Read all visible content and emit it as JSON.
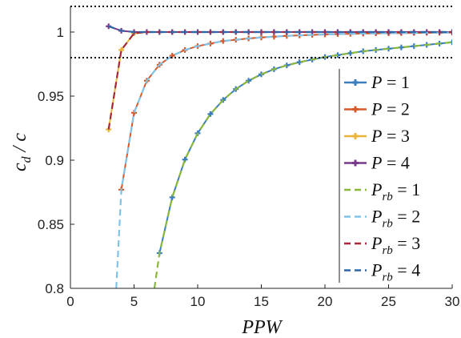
{
  "chart_data": {
    "type": "line",
    "xlabel": "PPW",
    "ylabel": "c_d / c",
    "xlim": [
      0,
      30
    ],
    "ylim": [
      0.8,
      1.02
    ],
    "xticks": [
      "0",
      "5",
      "10",
      "15",
      "20",
      "25",
      "30"
    ],
    "yticks": [
      "0.8",
      "0.85",
      "0.9",
      "0.95",
      "1"
    ],
    "reference_lines": [
      0.98,
      1.02
    ],
    "grid": false,
    "legend_position": "right",
    "series": [
      {
        "name": "P = 1",
        "style": "solid-marker",
        "color": "#3a7ec0",
        "x": [
          7,
          8,
          9,
          10,
          11,
          12,
          13,
          14,
          15,
          16,
          17,
          18,
          19,
          20,
          21,
          22,
          23,
          24,
          25,
          26,
          27,
          28,
          29,
          30
        ],
        "y": [
          0.8275,
          0.871,
          0.9005,
          0.921,
          0.936,
          0.947,
          0.9555,
          0.962,
          0.967,
          0.971,
          0.974,
          0.9765,
          0.9785,
          0.9805,
          0.982,
          0.9835,
          0.985,
          0.986,
          0.987,
          0.988,
          0.989,
          0.99,
          0.991,
          0.992
        ]
      },
      {
        "name": "P = 2",
        "style": "solid-marker",
        "color": "#d65a2a",
        "x": [
          4,
          5,
          6,
          7,
          8,
          9,
          10,
          11,
          12,
          13,
          14,
          15,
          16,
          17,
          18,
          19,
          20,
          21,
          22,
          23,
          24,
          25,
          26,
          27,
          28,
          29,
          30
        ],
        "y": [
          0.877,
          0.937,
          0.962,
          0.9745,
          0.9815,
          0.986,
          0.989,
          0.991,
          0.993,
          0.994,
          0.995,
          0.9958,
          0.9964,
          0.997,
          0.9974,
          0.9978,
          0.9981,
          0.9984,
          0.9986,
          0.9988,
          0.999,
          0.9991,
          0.9992,
          0.9993,
          0.9994,
          0.9995,
          0.9996
        ]
      },
      {
        "name": "P = 3",
        "style": "solid-marker",
        "color": "#e8b43a",
        "x": [
          3,
          4,
          5,
          6,
          7,
          8,
          9,
          10,
          11,
          12,
          13,
          14,
          15,
          16,
          17,
          18,
          19,
          20,
          21,
          22,
          23,
          24,
          25,
          26,
          27,
          28,
          29,
          30
        ],
        "y": [
          0.924,
          0.986,
          0.999,
          1.0,
          1.0,
          1.0,
          1.0,
          1.0,
          1.0,
          1.0,
          1.0,
          1.0,
          1.0,
          1.0,
          1.0,
          1.0,
          1.0,
          1.0,
          1.0,
          1.0,
          1.0,
          1.0,
          1.0,
          1.0,
          1.0,
          1.0,
          1.0,
          1.0
        ]
      },
      {
        "name": "P = 4",
        "style": "solid-marker",
        "color": "#7a3a8c",
        "x": [
          3,
          4,
          5,
          6,
          7,
          8,
          9,
          10,
          11,
          12,
          13,
          14,
          15,
          16,
          17,
          18,
          19,
          20,
          21,
          22,
          23,
          24,
          25,
          26,
          27,
          28,
          29,
          30
        ],
        "y": [
          1.0045,
          1.001,
          1.0,
          1.0,
          1.0,
          1.0,
          1.0,
          1.0,
          1.0,
          1.0,
          1.0,
          1.0,
          1.0,
          1.0,
          1.0,
          1.0,
          1.0,
          1.0,
          1.0,
          1.0,
          1.0,
          1.0,
          1.0,
          1.0,
          1.0,
          1.0,
          1.0,
          1.0
        ]
      },
      {
        "name": "P_rb = 1",
        "style": "dashed",
        "color": "#8ab83a",
        "x": [
          6.6,
          7,
          8,
          9,
          10,
          11,
          12,
          13,
          14,
          15,
          16,
          17,
          18,
          19,
          20,
          21,
          22,
          23,
          24,
          25,
          26,
          27,
          28,
          29,
          30
        ],
        "y": [
          0.8,
          0.8275,
          0.871,
          0.9005,
          0.921,
          0.936,
          0.947,
          0.9555,
          0.962,
          0.967,
          0.971,
          0.974,
          0.9765,
          0.9785,
          0.9805,
          0.982,
          0.9835,
          0.985,
          0.986,
          0.987,
          0.988,
          0.989,
          0.99,
          0.991,
          0.992
        ]
      },
      {
        "name": "P_rb = 2",
        "style": "dashed",
        "color": "#7fc4e8",
        "x": [
          3.6,
          4,
          5,
          6,
          7,
          8,
          9,
          10,
          11,
          12,
          13,
          14,
          15,
          16,
          17,
          18,
          19,
          20,
          21,
          22,
          23,
          24,
          25,
          26,
          27,
          28,
          29,
          30
        ],
        "y": [
          0.8,
          0.877,
          0.937,
          0.962,
          0.9745,
          0.9815,
          0.986,
          0.989,
          0.991,
          0.993,
          0.994,
          0.995,
          0.9958,
          0.9964,
          0.997,
          0.9974,
          0.9978,
          0.9981,
          0.9984,
          0.9986,
          0.9988,
          0.999,
          0.9991,
          0.9992,
          0.9993,
          0.9994,
          0.9995,
          0.9996
        ]
      },
      {
        "name": "P_rb = 3",
        "style": "dashed",
        "color": "#a8283a",
        "x": [
          3,
          4,
          5,
          6,
          7,
          8,
          9,
          10,
          11,
          12,
          13,
          14,
          15,
          16,
          17,
          18,
          19,
          20,
          21,
          22,
          23,
          24,
          25,
          26,
          27,
          28,
          29,
          30
        ],
        "y": [
          0.924,
          0.986,
          0.999,
          1.0,
          1.0,
          1.0,
          1.0,
          1.0,
          1.0,
          1.0,
          1.0,
          1.0,
          1.0,
          1.0,
          1.0,
          1.0,
          1.0,
          1.0,
          1.0,
          1.0,
          1.0,
          1.0,
          1.0,
          1.0,
          1.0,
          1.0,
          1.0,
          1.0
        ]
      },
      {
        "name": "P_rb = 4",
        "style": "dashed",
        "color": "#2a66a8",
        "x": [
          3,
          4,
          5,
          6,
          7,
          8,
          9,
          10,
          11,
          12,
          13,
          14,
          15,
          16,
          17,
          18,
          19,
          20,
          21,
          22,
          23,
          24,
          25,
          26,
          27,
          28,
          29,
          30
        ],
        "y": [
          1.0045,
          1.001,
          1.0,
          1.0,
          1.0,
          1.0,
          1.0,
          1.0,
          1.0,
          1.0,
          1.0,
          1.0,
          1.0,
          1.0,
          1.0,
          1.0,
          1.0,
          1.0,
          1.0,
          1.0,
          1.0,
          1.0,
          1.0,
          1.0,
          1.0,
          1.0,
          1.0,
          1.0
        ]
      }
    ]
  }
}
